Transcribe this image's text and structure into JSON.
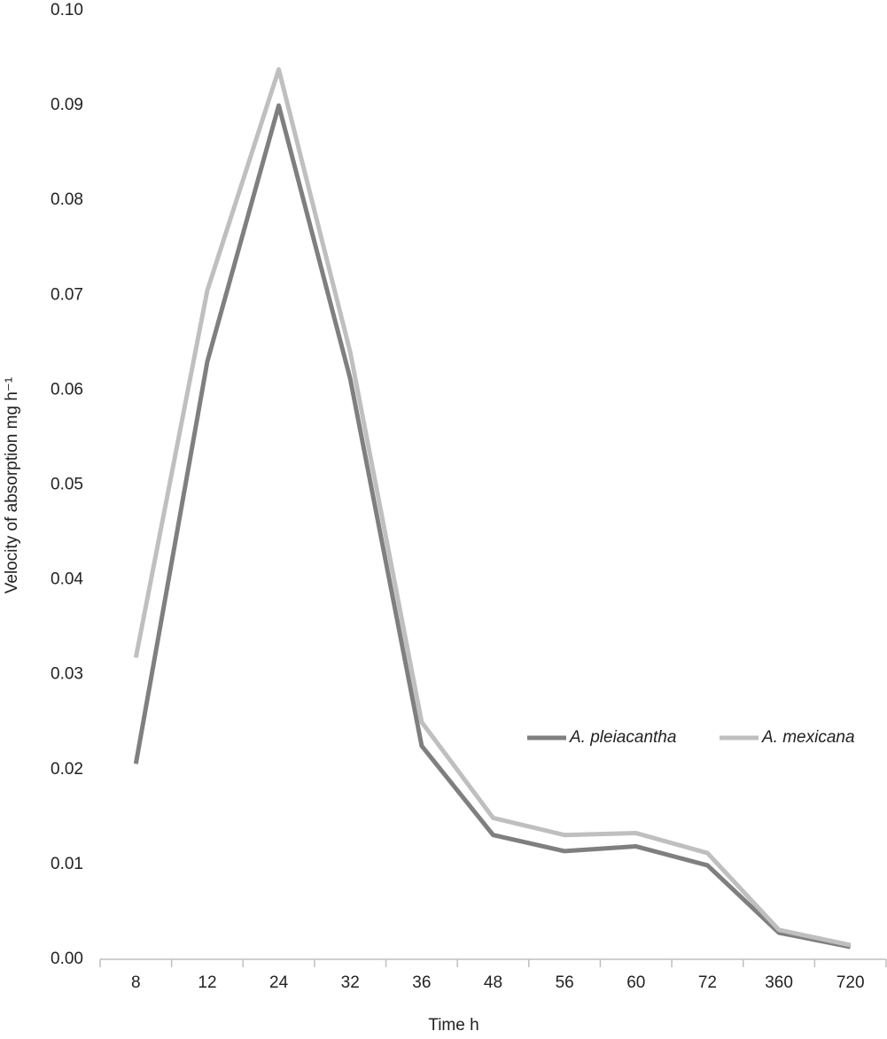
{
  "chart_data": {
    "type": "line",
    "x_label": "Time h",
    "y_label": "Velocity of absorption mg h⁻¹",
    "categories": [
      "8",
      "12",
      "24",
      "32",
      "36",
      "48",
      "56",
      "60",
      "72",
      "360",
      "720"
    ],
    "series": [
      {
        "name": "A. pleiacantha",
        "color": "#7f7f7f",
        "values": [
          0.0206,
          0.063,
          0.09,
          0.0612,
          0.0225,
          0.0131,
          0.0114,
          0.0119,
          0.0099,
          0.0028,
          0.0013
        ]
      },
      {
        "name": "A. mexicana",
        "color": "#bfbfbf",
        "values": [
          0.0318,
          0.0705,
          0.0938,
          0.064,
          0.025,
          0.0149,
          0.0131,
          0.0133,
          0.0112,
          0.0031,
          0.0015
        ]
      }
    ],
    "ylim": [
      0,
      0.1
    ],
    "yticks": [
      {
        "value": 0,
        "label": "0.00"
      },
      0.01,
      0.02,
      0.03,
      0.04,
      0.05,
      0.06,
      0.07,
      0.08,
      0.09,
      {
        "value": 0.1,
        "label": "0.10"
      }
    ],
    "grid": false,
    "legend": "right"
  }
}
